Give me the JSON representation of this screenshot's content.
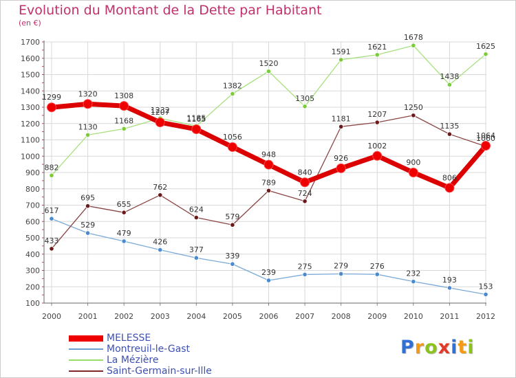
{
  "header": {
    "title": "Evolution du Montant de la Dette par Habitant",
    "unit": "(en €)"
  },
  "logo": {
    "letters": [
      "P",
      "r",
      "o",
      "x",
      "i",
      "t",
      "i"
    ],
    "colors": [
      "#2f6fd6",
      "#f39a17",
      "#8bc21c",
      "#e23a2a",
      "#2f6fd6",
      "#f39a17",
      "#8bc21c"
    ]
  },
  "chart_data": {
    "type": "line",
    "title": "Evolution du Montant de la Dette par Habitant",
    "ylabel": "(en €)",
    "xlabel": "",
    "x": [
      "2000",
      "2001",
      "2002",
      "2003",
      "2004",
      "2005",
      "2006",
      "2007",
      "2008",
      "2009",
      "2010",
      "2011",
      "2012"
    ],
    "ylim": [
      100,
      1700
    ],
    "yticks": [
      100,
      200,
      300,
      400,
      500,
      600,
      700,
      800,
      900,
      1000,
      1100,
      1200,
      1300,
      1400,
      1500,
      1600,
      1700
    ],
    "grid": true,
    "legend_position": "bottom-left",
    "series": [
      {
        "name": "MELESSE",
        "color": "#ee0000",
        "values": [
          1299,
          1320,
          1308,
          1207,
          1165,
          1056,
          948,
          840,
          926,
          1002,
          900,
          806,
          1064
        ]
      },
      {
        "name": "Montreuil-le-Gast",
        "color": "#6a9fd2",
        "values": [
          617,
          529,
          479,
          426,
          377,
          339,
          239,
          275,
          279,
          276,
          232,
          193,
          153
        ]
      },
      {
        "name": "La Mézière",
        "color": "#98dd6a",
        "values": [
          882,
          1130,
          1168,
          1232,
          1185,
          1382,
          1520,
          1305,
          1591,
          1621,
          1678,
          1438,
          1625
        ]
      },
      {
        "name": "Saint-Germain-sur-Ille",
        "color": "#7a2a2a",
        "values": [
          433,
          695,
          655,
          762,
          624,
          579,
          789,
          724,
          1181,
          1207,
          1250,
          1135,
          1060
        ]
      }
    ]
  }
}
